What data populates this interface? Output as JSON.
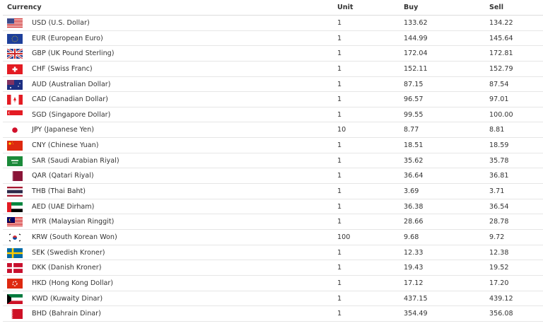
{
  "headers": {
    "currency": "Currency",
    "unit": "Unit",
    "buy": "Buy",
    "sell": "Sell"
  },
  "rows": [
    {
      "flag": "us-flag-icon",
      "currency": "USD (U.S. Dollar)",
      "unit": "1",
      "buy": "133.62",
      "sell": "134.22"
    },
    {
      "flag": "eu-flag-icon",
      "currency": "EUR (European Euro)",
      "unit": "1",
      "buy": "144.99",
      "sell": "145.64"
    },
    {
      "flag": "uk-flag-icon",
      "currency": "GBP (UK Pound Sterling)",
      "unit": "1",
      "buy": "172.04",
      "sell": "172.81"
    },
    {
      "flag": "ch-flag-icon",
      "currency": "CHF (Swiss Franc)",
      "unit": "1",
      "buy": "152.11",
      "sell": "152.79"
    },
    {
      "flag": "au-flag-icon",
      "currency": "AUD (Australian Dollar)",
      "unit": "1",
      "buy": "87.15",
      "sell": "87.54"
    },
    {
      "flag": "ca-flag-icon",
      "currency": "CAD (Canadian Dollar)",
      "unit": "1",
      "buy": "96.57",
      "sell": "97.01"
    },
    {
      "flag": "sg-flag-icon",
      "currency": "SGD (Singapore Dollar)",
      "unit": "1",
      "buy": "99.55",
      "sell": "100.00"
    },
    {
      "flag": "jp-flag-icon",
      "currency": "JPY (Japanese Yen)",
      "unit": "10",
      "buy": "8.77",
      "sell": "8.81"
    },
    {
      "flag": "cn-flag-icon",
      "currency": "CNY (Chinese Yuan)",
      "unit": "1",
      "buy": "18.51",
      "sell": "18.59"
    },
    {
      "flag": "sa-flag-icon",
      "currency": "SAR (Saudi Arabian Riyal)",
      "unit": "1",
      "buy": "35.62",
      "sell": "35.78"
    },
    {
      "flag": "qa-flag-icon",
      "currency": "QAR (Qatari Riyal)",
      "unit": "1",
      "buy": "36.64",
      "sell": "36.81"
    },
    {
      "flag": "th-flag-icon",
      "currency": "THB (Thai Baht)",
      "unit": "1",
      "buy": "3.69",
      "sell": "3.71"
    },
    {
      "flag": "ae-flag-icon",
      "currency": "AED (UAE Dirham)",
      "unit": "1",
      "buy": "36.38",
      "sell": "36.54"
    },
    {
      "flag": "my-flag-icon",
      "currency": "MYR (Malaysian Ringgit)",
      "unit": "1",
      "buy": "28.66",
      "sell": "28.78"
    },
    {
      "flag": "kr-flag-icon",
      "currency": "KRW (South Korean Won)",
      "unit": "100",
      "buy": "9.68",
      "sell": "9.72"
    },
    {
      "flag": "se-flag-icon",
      "currency": "SEK (Swedish Kroner)",
      "unit": "1",
      "buy": "12.33",
      "sell": "12.38"
    },
    {
      "flag": "dk-flag-icon",
      "currency": "DKK (Danish Kroner)",
      "unit": "1",
      "buy": "19.43",
      "sell": "19.52"
    },
    {
      "flag": "hk-flag-icon",
      "currency": "HKD (Hong Kong Dollar)",
      "unit": "1",
      "buy": "17.12",
      "sell": "17.20"
    },
    {
      "flag": "kw-flag-icon",
      "currency": "KWD (Kuwaity Dinar)",
      "unit": "1",
      "buy": "437.15",
      "sell": "439.12"
    },
    {
      "flag": "bh-flag-icon",
      "currency": "BHD (Bahrain Dinar)",
      "unit": "1",
      "buy": "354.49",
      "sell": "356.08"
    }
  ]
}
